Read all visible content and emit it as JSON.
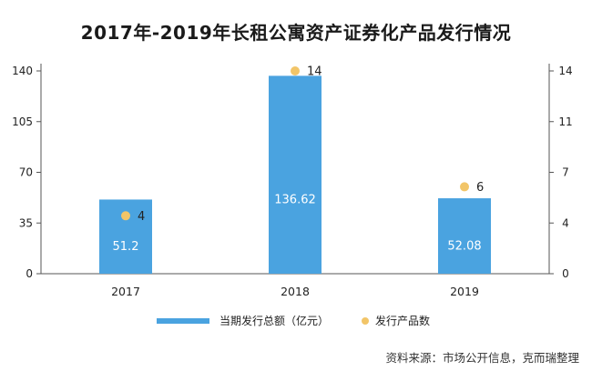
{
  "title": "2017年-2019年长租公寓资产证券化产品发行情况",
  "source": "资料来源：市场公开信息，克而瑞整理",
  "chart_data": {
    "type": "bar",
    "title": "2017年-2019年长租公寓资产证券化产品发行情况",
    "categories": [
      "2017",
      "2018",
      "2019"
    ],
    "series": [
      {
        "name": "当期发行总额（亿元）",
        "type": "bar",
        "axis": "left",
        "values": [
          51.2,
          136.62,
          52.08
        ],
        "labels": [
          "51.2",
          "136.62",
          "52.08"
        ],
        "color": "#4aa3e0"
      },
      {
        "name": "发行产品数",
        "type": "scatter",
        "axis": "right",
        "values": [
          4,
          14,
          6
        ],
        "labels": [
          "4",
          "14",
          "6"
        ],
        "color": "#f2c568"
      }
    ],
    "y_left": {
      "min": 0,
      "max": 140,
      "ticks": [
        0,
        35,
        70,
        105,
        140
      ],
      "tick_labels": [
        "0",
        "35",
        "70",
        "105",
        "140"
      ]
    },
    "y_right": {
      "min": 0,
      "max": 14,
      "ticks": [
        0,
        3.5,
        7,
        10.5,
        14
      ],
      "tick_labels": [
        "0",
        "4",
        "7",
        "11",
        "14"
      ]
    },
    "grid": false,
    "legend": "bottom"
  }
}
